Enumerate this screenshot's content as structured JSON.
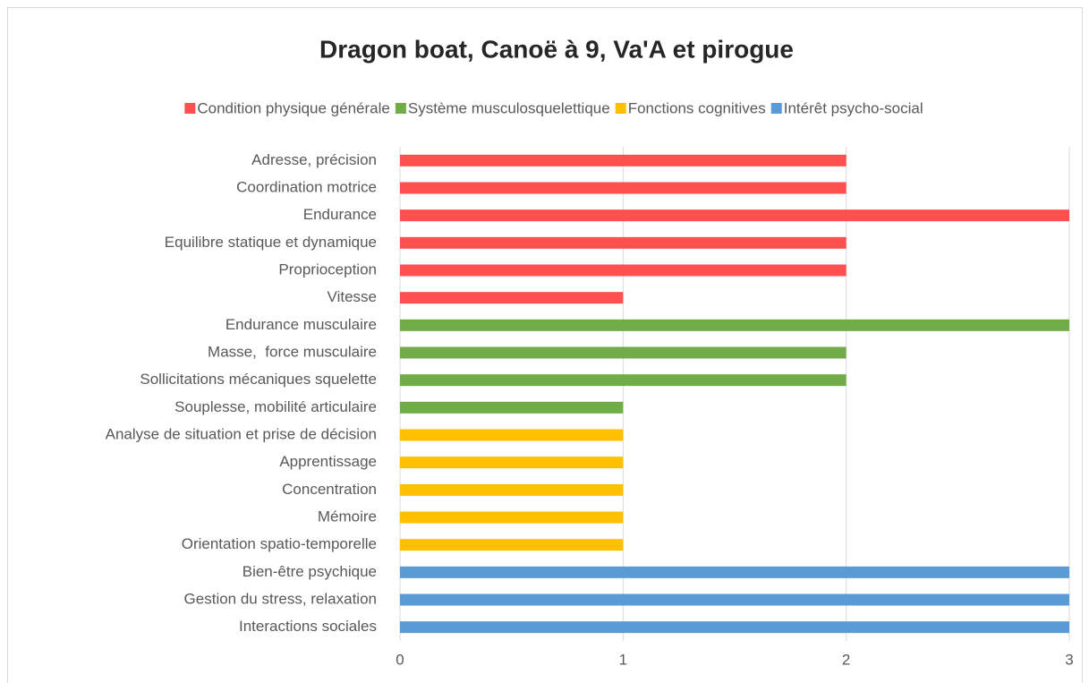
{
  "chart_data": {
    "type": "barh",
    "title": "Dragon boat, Canoë à 9, Va'A et pirogue",
    "categories": [
      "Adresse, précision",
      "Coordination motrice",
      "Endurance",
      "Equilibre statique et dynamique",
      "Proprioception",
      "Vitesse",
      "Endurance musculaire",
      "Masse,  force musculaire",
      "Sollicitations mécaniques squelette",
      "Souplesse, mobilité articulaire",
      "Analyse de situation et prise de décision",
      "Apprentissage",
      "Concentration",
      "Mémoire",
      "Orientation spatio-temporelle",
      "Bien-être psychique",
      "Gestion du stress, relaxation",
      "Interactions sociales"
    ],
    "series": [
      {
        "name": "Condition physique générale",
        "color": "#ff5050",
        "values": [
          2,
          2,
          3,
          2,
          2,
          1,
          null,
          null,
          null,
          null,
          null,
          null,
          null,
          null,
          null,
          null,
          null,
          null
        ]
      },
      {
        "name": "Système musculosquelettique",
        "color": "#70ad47",
        "values": [
          null,
          null,
          null,
          null,
          null,
          null,
          3,
          2,
          2,
          1,
          null,
          null,
          null,
          null,
          null,
          null,
          null,
          null
        ]
      },
      {
        "name": "Fonctions cognitives",
        "color": "#ffc000",
        "values": [
          null,
          null,
          null,
          null,
          null,
          null,
          null,
          null,
          null,
          null,
          1,
          1,
          1,
          1,
          1,
          null,
          null,
          null
        ]
      },
      {
        "name": "Intérêt psycho-social",
        "color": "#5b9bd5",
        "values": [
          null,
          null,
          null,
          null,
          null,
          null,
          null,
          null,
          null,
          null,
          null,
          null,
          null,
          null,
          null,
          3,
          3,
          3
        ]
      }
    ],
    "xlim": [
      0,
      3
    ],
    "xticks": [
      0,
      1,
      2,
      3
    ],
    "grid": true,
    "legend": "top"
  }
}
